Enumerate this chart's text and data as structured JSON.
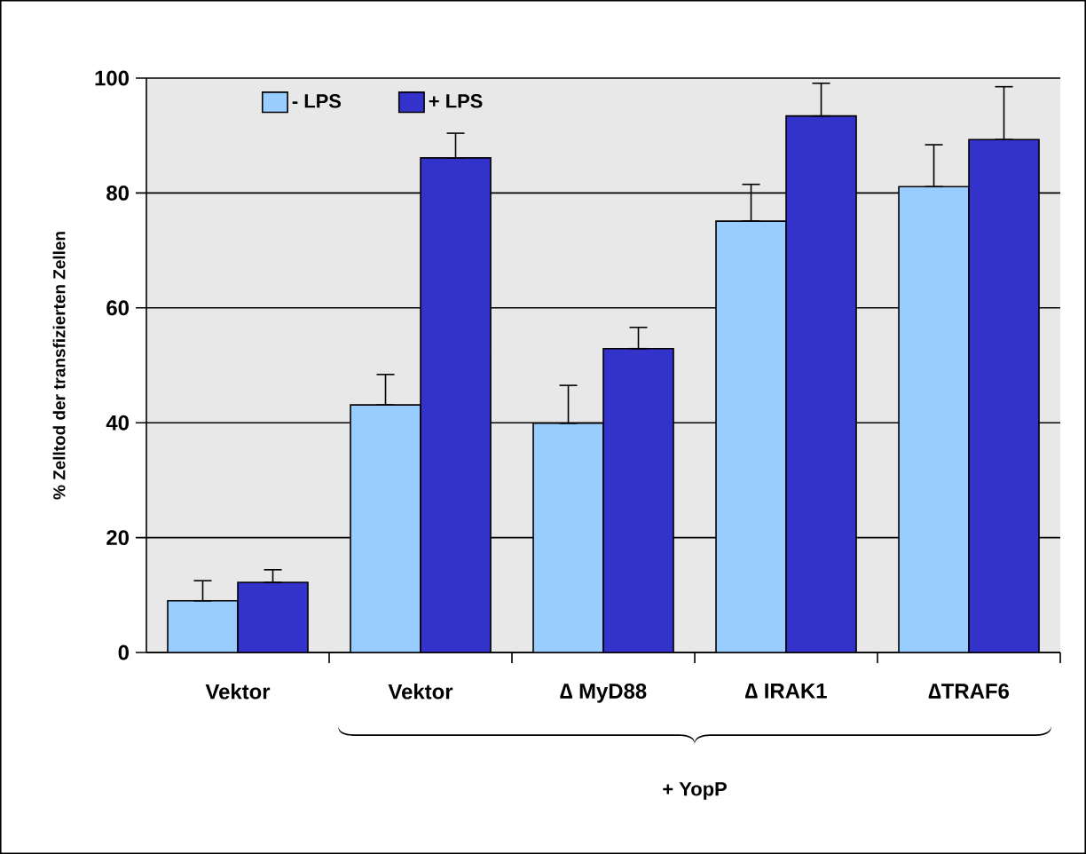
{
  "chart_data": {
    "type": "bar",
    "ylabel": "% Zelltod der transfizierten Zellen",
    "categories": [
      "Vektor",
      "Vektor",
      "∆ MyD88",
      "∆ IRAK1",
      "∆TRAF6"
    ],
    "series": [
      {
        "name": "- LPS",
        "color": "#99ccff",
        "values": [
          9,
          43.1,
          39.9,
          75.1,
          81.1
        ],
        "errors": [
          [
            9,
            12.5
          ],
          [
            43.1,
            48.4
          ],
          [
            39.9,
            46.5
          ],
          [
            75.1,
            81.5
          ],
          [
            81.1,
            88.4
          ]
        ]
      },
      {
        "name": "+ LPS",
        "color": "#3333cc",
        "values": [
          12.2,
          86.1,
          52.9,
          93.4,
          89.3
        ],
        "errors": [
          [
            12.2,
            14.4
          ],
          [
            86.1,
            90.4
          ],
          [
            52.9,
            56.6
          ],
          [
            93.4,
            99.1
          ],
          [
            89.3,
            98.5
          ]
        ]
      }
    ],
    "ylim": [
      0,
      100
    ],
    "yticks": [
      0,
      20,
      40,
      60,
      80,
      100
    ],
    "grid": "y",
    "legend": "top left",
    "annotations": [
      "+ YopP"
    ]
  }
}
